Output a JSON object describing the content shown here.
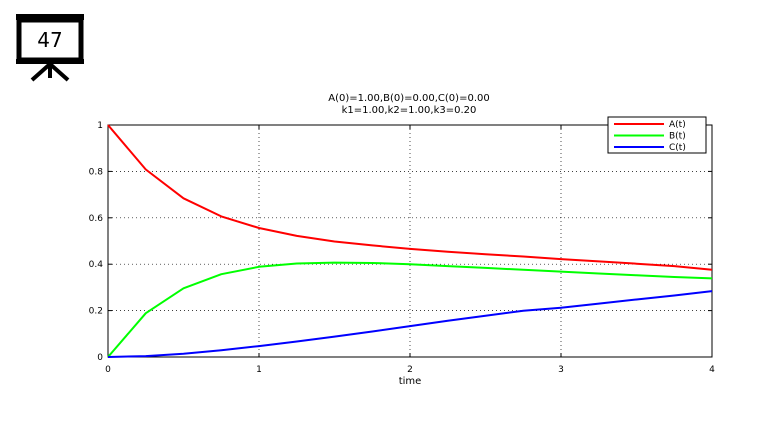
{
  "slide": {
    "number": "47"
  },
  "chart_data": {
    "type": "line",
    "title": [
      "A(0)=1.00,B(0)=0.00,C(0)=0.00",
      "k1=1.00,k2=1.00,k3=0.20"
    ],
    "xlabel": "time",
    "ylabel": "",
    "xlim": [
      0,
      4
    ],
    "ylim": [
      0,
      1
    ],
    "xticks": [
      "0",
      "1",
      "2",
      "3",
      "4"
    ],
    "yticks": [
      "0",
      "0.2",
      "0.4",
      "0.6",
      "0.8",
      "1"
    ],
    "grid": true,
    "legend_position": "top-right",
    "x": [
      0,
      0.25,
      0.5,
      0.75,
      1,
      1.25,
      1.5,
      1.75,
      2,
      2.25,
      2.5,
      2.75,
      3,
      3.25,
      3.5,
      3.75,
      4
    ],
    "series": [
      {
        "name": "A(t)",
        "color": "#ff0000",
        "values": [
          1.0,
          0.808,
          0.684,
          0.606,
          0.556,
          0.522,
          0.498,
          0.481,
          0.466,
          0.454,
          0.443,
          0.433,
          0.422,
          0.412,
          0.402,
          0.392,
          0.376
        ]
      },
      {
        "name": "B(t)",
        "color": "#00ff00",
        "values": [
          0.0,
          0.189,
          0.296,
          0.357,
          0.389,
          0.403,
          0.407,
          0.405,
          0.4,
          0.392,
          0.384,
          0.376,
          0.368,
          0.36,
          0.352,
          0.345,
          0.339
        ]
      },
      {
        "name": "C(t)",
        "color": "#0000ff",
        "values": [
          0.0,
          0.004,
          0.014,
          0.029,
          0.047,
          0.067,
          0.088,
          0.11,
          0.133,
          0.156,
          0.178,
          0.199,
          0.212,
          0.23,
          0.248,
          0.265,
          0.284
        ]
      }
    ]
  }
}
